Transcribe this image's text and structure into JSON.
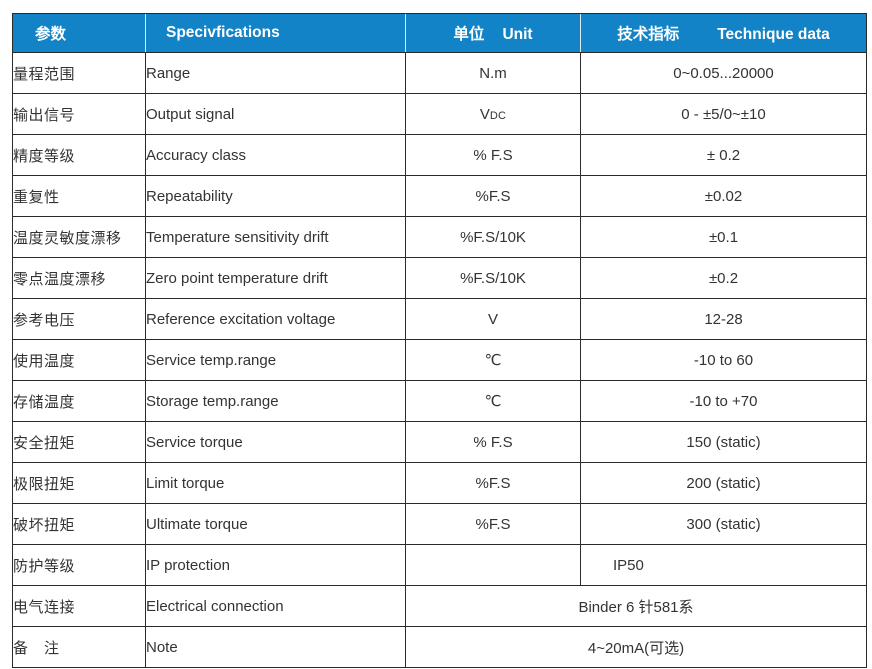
{
  "accent_color": "#1283c6",
  "grid_color": "#2b2b2b",
  "text_color": "#333333",
  "table": {
    "header": {
      "col1_cn": "参数",
      "col2_en": "Specivfications",
      "col3_cn": "单位",
      "col3_en": "Unit",
      "col4_cn": "技术指标",
      "col4_en": "Technique data"
    },
    "rows": [
      {
        "cn": "量程范围",
        "en": "Range",
        "unit": "N.m",
        "value": "0~0.05...20000"
      },
      {
        "cn": "输出信号",
        "en": "Output signal",
        "unit_main": "V",
        "unit_sub": "DC",
        "value": "0 - ±5/0~±10"
      },
      {
        "cn": "精度等级",
        "en": "Accuracy class",
        "unit": "% F.S",
        "value": "± 0.2"
      },
      {
        "cn": "重复性",
        "en": "Repeatability",
        "unit": "%F.S",
        "value": "±0.02"
      },
      {
        "cn": "温度灵敏度漂移",
        "en": "Temperature sensitivity drift",
        "unit": "%F.S/10K",
        "value": "±0.1"
      },
      {
        "cn": "零点温度漂移",
        "en": "Zero point temperature drift",
        "unit": "%F.S/10K",
        "value": "±0.2"
      },
      {
        "cn": "参考电压",
        "en": "Reference excitation voltage",
        "unit": "V",
        "value": "12-28"
      },
      {
        "cn": "使用温度",
        "en": "Service temp.range",
        "unit": "℃",
        "value": "-10 to 60"
      },
      {
        "cn": "存储温度",
        "en": "Storage temp.range",
        "unit": "℃",
        "value": "-10 to +70"
      },
      {
        "cn": "安全扭矩",
        "en": "Service torque",
        "unit": "% F.S",
        "value": "150 (static)"
      },
      {
        "cn": "极限扭矩",
        "en": "Limit torque",
        "unit": "%F.S",
        "value": "200 (static)"
      },
      {
        "cn": "破坏扭矩",
        "en": "Ultimate torque",
        "unit": "%F.S",
        "value": "300 (static)"
      },
      {
        "cn": "防护等级",
        "en": "IP protection",
        "unit": "",
        "value": "IP50"
      },
      {
        "cn": "电气连接",
        "en": "Electrical connection",
        "merged_value": "Binder 6 针581系"
      },
      {
        "cn": "备　注",
        "en": "Note",
        "merged_value": "4~20mA(可选)"
      }
    ]
  }
}
